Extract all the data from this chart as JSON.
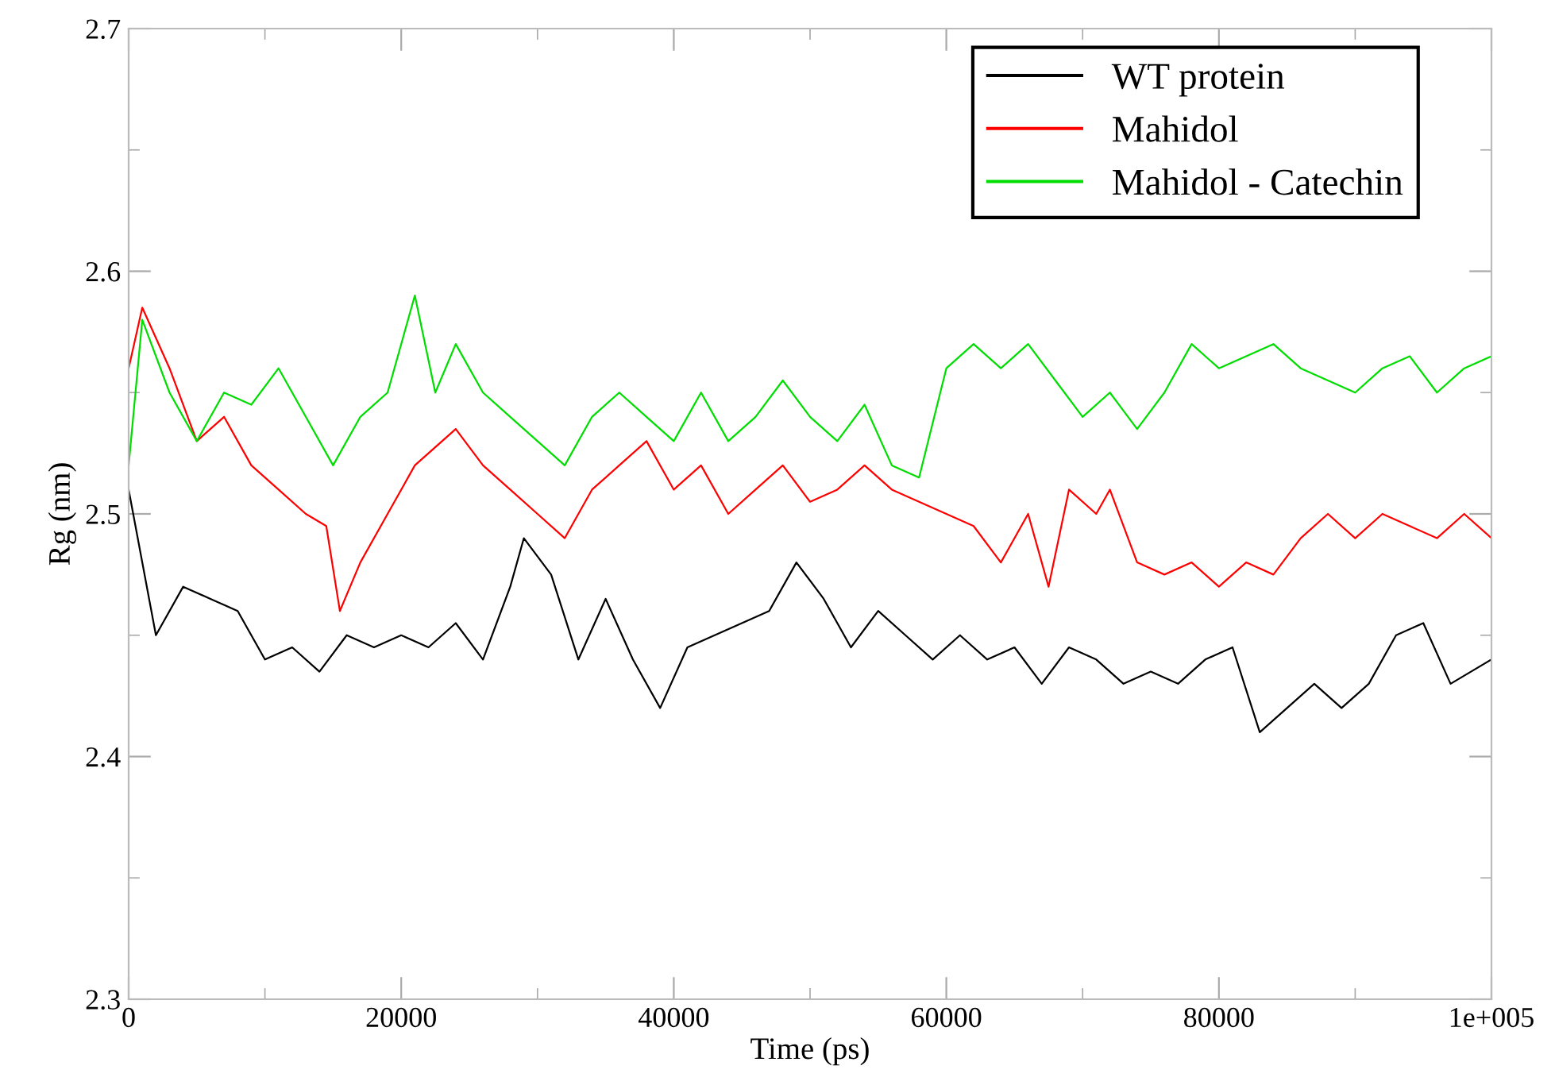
{
  "chart_data": {
    "type": "line",
    "xlabel": "Time (ps)",
    "ylabel": "Rg (nm)",
    "xlim": [
      0,
      100000
    ],
    "ylim": [
      2.3,
      2.7
    ],
    "xticks": [
      0,
      {
        "value": 10000,
        "label": null
      },
      20000,
      {
        "value": 30000,
        "label": null
      },
      40000,
      {
        "value": 50000,
        "label": null
      },
      60000,
      {
        "value": 70000,
        "label": null
      },
      80000,
      {
        "value": 90000,
        "label": null
      },
      {
        "value": 100000,
        "label": "1e+005"
      }
    ],
    "yticks": [
      2.3,
      {
        "value": 2.35,
        "label": null
      },
      2.4,
      {
        "value": 2.45,
        "label": null
      },
      2.5,
      {
        "value": 2.55,
        "label": null
      },
      2.6,
      {
        "value": 2.65,
        "label": null
      },
      2.7
    ],
    "grid": false,
    "legend": "top right",
    "line_style": "solid",
    "marker": "none",
    "series": [
      {
        "name": "WT protein",
        "color": "#000000",
        "x": [
          0,
          2000,
          4000,
          6000,
          8000,
          10000,
          12000,
          14000,
          16000,
          18000,
          20000,
          22000,
          24000,
          26000,
          28000,
          29000,
          31000,
          33000,
          35000,
          37000,
          39000,
          41000,
          43000,
          45000,
          47000,
          49000,
          51000,
          53000,
          55000,
          57000,
          59000,
          61000,
          63000,
          65000,
          67000,
          69000,
          71000,
          73000,
          75000,
          77000,
          79000,
          81000,
          83000,
          85000,
          87000,
          89000,
          91000,
          93000,
          95000,
          97000,
          100000
        ],
        "values": [
          2.51,
          2.45,
          2.47,
          2.465,
          2.46,
          2.44,
          2.445,
          2.435,
          2.45,
          2.445,
          2.45,
          2.445,
          2.455,
          2.44,
          2.47,
          2.49,
          2.475,
          2.44,
          2.465,
          2.44,
          2.42,
          2.445,
          2.45,
          2.455,
          2.46,
          2.48,
          2.465,
          2.445,
          2.46,
          2.45,
          2.44,
          2.45,
          2.44,
          2.445,
          2.43,
          2.445,
          2.44,
          2.43,
          2.435,
          2.43,
          2.44,
          2.445,
          2.41,
          2.42,
          2.43,
          2.42,
          2.43,
          2.45,
          2.455,
          2.43,
          2.44
        ]
      },
      {
        "name": "Mahidol",
        "color": "#ff0000",
        "x": [
          0,
          1000,
          3000,
          5000,
          7000,
          9000,
          11000,
          13000,
          14500,
          15500,
          17000,
          19000,
          21000,
          23000,
          24000,
          26000,
          28000,
          30000,
          32000,
          34000,
          36000,
          38000,
          40000,
          42000,
          44000,
          46000,
          48000,
          50000,
          52000,
          54000,
          56000,
          58000,
          60000,
          62000,
          64000,
          66000,
          67500,
          69000,
          71000,
          72000,
          74000,
          76000,
          78000,
          80000,
          82000,
          84000,
          86000,
          88000,
          90000,
          92000,
          94000,
          96000,
          98000,
          100000
        ],
        "values": [
          2.56,
          2.585,
          2.56,
          2.53,
          2.54,
          2.52,
          2.51,
          2.5,
          2.495,
          2.46,
          2.48,
          2.5,
          2.52,
          2.53,
          2.535,
          2.52,
          2.51,
          2.5,
          2.49,
          2.51,
          2.52,
          2.53,
          2.51,
          2.52,
          2.5,
          2.51,
          2.52,
          2.505,
          2.51,
          2.52,
          2.51,
          2.505,
          2.5,
          2.495,
          2.48,
          2.5,
          2.47,
          2.51,
          2.5,
          2.51,
          2.48,
          2.475,
          2.48,
          2.47,
          2.48,
          2.475,
          2.49,
          2.5,
          2.49,
          2.5,
          2.495,
          2.49,
          2.5,
          2.49
        ]
      },
      {
        "name": "Mahidol - Catechin",
        "color": "#00dd00",
        "x": [
          0,
          1000,
          3000,
          5000,
          7000,
          9000,
          11000,
          13000,
          15000,
          17000,
          19000,
          21000,
          22500,
          24000,
          26000,
          28000,
          30000,
          32000,
          34000,
          36000,
          38000,
          40000,
          42000,
          44000,
          46000,
          48000,
          50000,
          52000,
          54000,
          56000,
          58000,
          60000,
          62000,
          64000,
          66000,
          68000,
          70000,
          72000,
          74000,
          76000,
          78000,
          80000,
          82000,
          84000,
          86000,
          88000,
          90000,
          92000,
          94000,
          96000,
          98000,
          100000
        ],
        "values": [
          2.52,
          2.58,
          2.55,
          2.53,
          2.55,
          2.545,
          2.56,
          2.54,
          2.52,
          2.54,
          2.55,
          2.59,
          2.55,
          2.57,
          2.55,
          2.54,
          2.53,
          2.52,
          2.54,
          2.55,
          2.54,
          2.53,
          2.55,
          2.53,
          2.54,
          2.555,
          2.54,
          2.53,
          2.545,
          2.52,
          2.515,
          2.56,
          2.57,
          2.56,
          2.57,
          2.555,
          2.54,
          2.55,
          2.535,
          2.55,
          2.57,
          2.56,
          2.565,
          2.57,
          2.56,
          2.555,
          2.55,
          2.56,
          2.565,
          2.55,
          2.56,
          2.565
        ]
      }
    ]
  }
}
